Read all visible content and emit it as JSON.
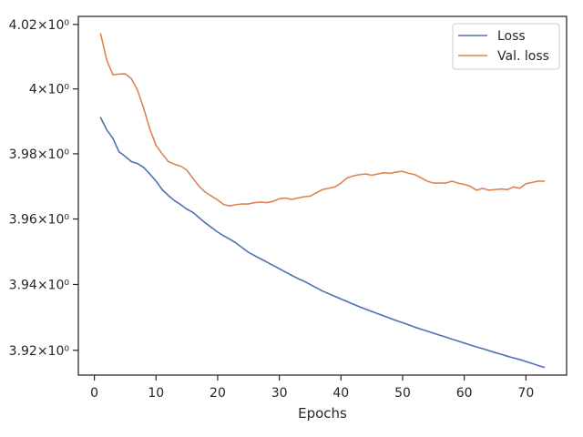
{
  "chart_data": {
    "type": "line",
    "xlabel": "Epochs",
    "ylabel": "",
    "title": "",
    "xlim": [
      -2.6,
      76.6
    ],
    "ylim": [
      3.9125,
      4.0225
    ],
    "log_scale_y": true,
    "grid": false,
    "legend_position": "top-right",
    "x_ticks": [
      0,
      10,
      20,
      30,
      40,
      50,
      60,
      70
    ],
    "x_tick_labels": [
      "0",
      "10",
      "20",
      "30",
      "40",
      "50",
      "60",
      "70"
    ],
    "y_ticks": [
      3.92,
      3.94,
      3.96,
      3.98,
      4.0,
      4.02
    ],
    "y_tick_labels": [
      "3.92×10⁰",
      "3.94×10⁰",
      "3.96×10⁰",
      "3.98×10⁰",
      "4×10⁰",
      "4.02×10⁰"
    ],
    "x": [
      1,
      2,
      3,
      4,
      5,
      6,
      7,
      8,
      9,
      10,
      11,
      12,
      13,
      14,
      15,
      16,
      17,
      18,
      19,
      20,
      21,
      22,
      23,
      24,
      25,
      26,
      27,
      28,
      29,
      30,
      31,
      32,
      33,
      34,
      35,
      36,
      37,
      38,
      39,
      40,
      41,
      42,
      43,
      44,
      45,
      46,
      47,
      48,
      49,
      50,
      51,
      52,
      53,
      54,
      55,
      56,
      57,
      58,
      59,
      60,
      61,
      62,
      63,
      64,
      65,
      66,
      67,
      68,
      69,
      70,
      71,
      72,
      73
    ],
    "series": [
      {
        "name": "Loss",
        "color": "#4c72b0",
        "values": [
          3.9912,
          3.9874,
          3.9848,
          3.9806,
          3.9792,
          3.9776,
          3.977,
          3.9758,
          3.9738,
          3.9716,
          3.969,
          3.9672,
          3.9656,
          3.9644,
          3.963,
          3.962,
          3.9604,
          3.9588,
          3.9574,
          3.956,
          3.9548,
          3.9538,
          3.9526,
          3.9512,
          3.9498,
          3.9488,
          3.9478,
          3.9468,
          3.9458,
          3.9448,
          3.9438,
          3.9428,
          3.9418,
          3.941,
          3.94,
          3.939,
          3.938,
          3.9372,
          3.9364,
          3.9356,
          3.9348,
          3.934,
          3.9332,
          3.9325,
          3.9318,
          3.9311,
          3.9304,
          3.9297,
          3.929,
          3.9284,
          3.9277,
          3.927,
          3.9264,
          3.9258,
          3.9252,
          3.9246,
          3.924,
          3.9234,
          3.9228,
          3.9222,
          3.9216,
          3.921,
          3.9205,
          3.9199,
          3.9193,
          3.9188,
          3.9182,
          3.9177,
          3.9172,
          3.9166,
          3.916,
          3.9154,
          3.9148
        ]
      },
      {
        "name": "Val. loss",
        "color": "#dd8452",
        "values": [
          4.0172,
          4.009,
          4.0044,
          4.0046,
          4.0047,
          4.0032,
          3.9996,
          3.994,
          3.9876,
          3.9826,
          3.98,
          3.9776,
          3.9768,
          3.9762,
          3.975,
          3.9724,
          3.97,
          3.9682,
          3.967,
          3.9658,
          3.9644,
          3.964,
          3.9644,
          3.9646,
          3.9646,
          3.965,
          3.9652,
          3.965,
          3.9654,
          3.9662,
          3.9664,
          3.966,
          3.9664,
          3.9668,
          3.967,
          3.968,
          3.969,
          3.9694,
          3.9698,
          3.971,
          3.9726,
          3.9732,
          3.9736,
          3.9738,
          3.9734,
          3.9738,
          3.9742,
          3.974,
          3.9744,
          3.9746,
          3.974,
          3.9736,
          3.9726,
          3.9716,
          3.971,
          3.971,
          3.971,
          3.9716,
          3.971,
          3.9706,
          3.97,
          3.9688,
          3.9694,
          3.9688,
          3.969,
          3.9692,
          3.969,
          3.9698,
          3.9694,
          3.9708,
          3.9712,
          3.9716,
          3.9716
        ]
      }
    ]
  }
}
